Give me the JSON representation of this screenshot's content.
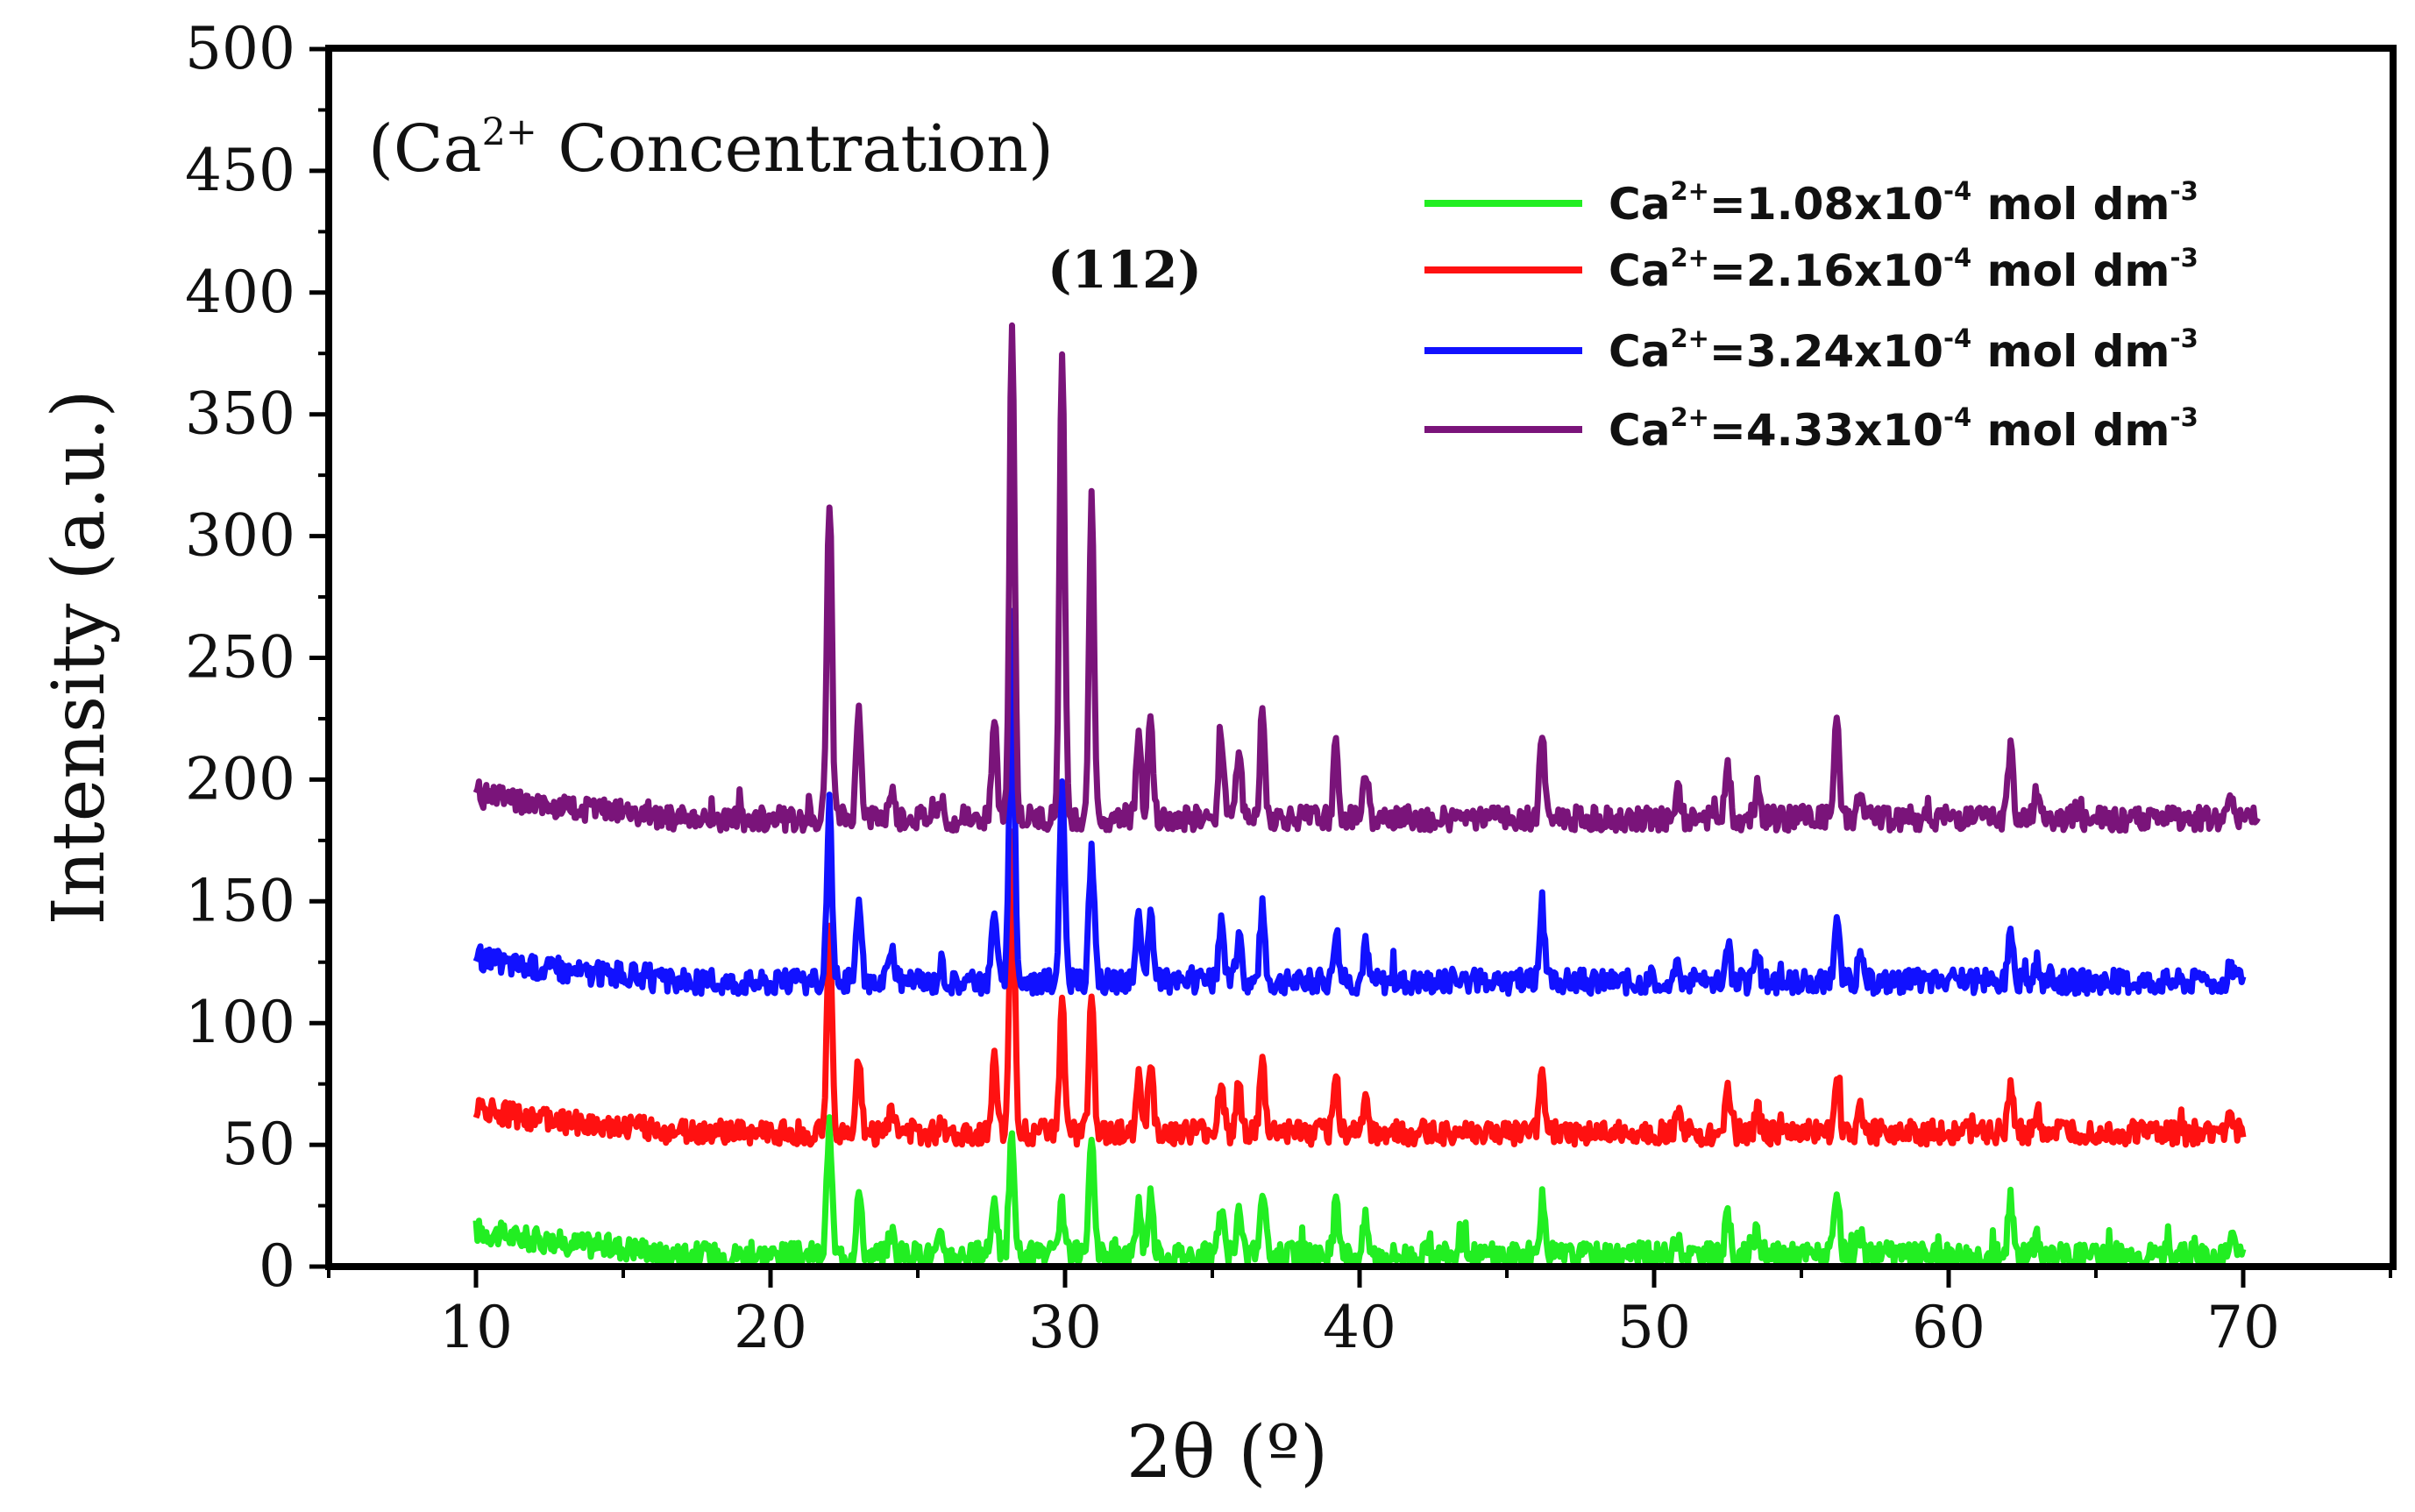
{
  "chart_data": {
    "type": "line",
    "title": "",
    "annotation": {
      "prefix": "(Ca",
      "sup": "2+",
      "suffix": " Concentration)"
    },
    "peak_label": "(112)",
    "xlabel": "2θ (º)",
    "ylabel": "Intensity (a.u.)",
    "xlim": [
      5,
      75
    ],
    "ylim": [
      0,
      500
    ],
    "xticks": [
      10,
      20,
      30,
      40,
      50,
      60,
      70
    ],
    "yticks": [
      0,
      50,
      100,
      150,
      200,
      250,
      300,
      350,
      400,
      450,
      500
    ],
    "legend_position": "top-right",
    "peaks": [
      {
        "pos": 22.0,
        "h": [
          52,
          82,
          72,
          132
        ]
      },
      {
        "pos": 23.0,
        "h": [
          26,
          30,
          32,
          45
        ]
      },
      {
        "pos": 24.1,
        "h": [
          10,
          11,
          12,
          12
        ]
      },
      {
        "pos": 25.8,
        "h": [
          7,
          7,
          8,
          9
        ]
      },
      {
        "pos": 27.6,
        "h": [
          26,
          30,
          32,
          40
        ]
      },
      {
        "pos": 28.2,
        "h": [
          50,
          125,
          150,
          205
        ]
      },
      {
        "pos": 29.9,
        "h": [
          20,
          53,
          80,
          195
        ]
      },
      {
        "pos": 30.9,
        "h": [
          45,
          53,
          55,
          130
        ]
      },
      {
        "pos": 32.5,
        "h": [
          22,
          24,
          25,
          38
        ]
      },
      {
        "pos": 32.9,
        "h": [
          25,
          28,
          30,
          42
        ]
      },
      {
        "pos": 35.3,
        "h": [
          20,
          22,
          25,
          35
        ]
      },
      {
        "pos": 35.9,
        "h": [
          18,
          20,
          20,
          30
        ]
      },
      {
        "pos": 36.7,
        "h": [
          28,
          28,
          30,
          42
        ]
      },
      {
        "pos": 39.2,
        "h": [
          20,
          22,
          22,
          30
        ]
      },
      {
        "pos": 40.2,
        "h": [
          14,
          15,
          15,
          20
        ]
      },
      {
        "pos": 46.2,
        "h": [
          22,
          24,
          25,
          35
        ]
      },
      {
        "pos": 50.8,
        "h": [
          7,
          8,
          8,
          10
        ]
      },
      {
        "pos": 52.5,
        "h": [
          15,
          16,
          16,
          20
        ]
      },
      {
        "pos": 53.5,
        "h": [
          9,
          10,
          10,
          12
        ]
      },
      {
        "pos": 56.2,
        "h": [
          25,
          25,
          27,
          38
        ]
      },
      {
        "pos": 57.0,
        "h": [
          8,
          9,
          9,
          10
        ]
      },
      {
        "pos": 62.1,
        "h": [
          22,
          20,
          24,
          30
        ]
      },
      {
        "pos": 63.0,
        "h": [
          8,
          8,
          8,
          10
        ]
      },
      {
        "pos": 69.6,
        "h": [
          7,
          7,
          8,
          10
        ]
      }
    ],
    "series": [
      {
        "name": "Ca2+=1.08x10-4 mol dm-3",
        "legend": {
          "prefix": "Ca",
          "sup1": "2+",
          "mid": "=1.08x10",
          "sup2": "-4",
          "unit": " mol dm",
          "sup3": "-3"
        },
        "color": "#22ee22",
        "baseline": 5,
        "x_start": 10,
        "x_end": 70
      },
      {
        "name": "Ca2+=2.16x10-4 mol dm-3",
        "legend": {
          "prefix": "Ca",
          "sup1": "2+",
          "mid": "=2.16x10",
          "sup2": "-4",
          "unit": " mol dm",
          "sup3": "-3"
        },
        "color": "#ff1111",
        "baseline": 55,
        "x_start": 10,
        "x_end": 70
      },
      {
        "name": "Ca2+=3.24x10-4 mol dm-3",
        "legend": {
          "prefix": "Ca",
          "sup1": "2+",
          "mid": "=3.24x10",
          "sup2": "-4",
          "unit": " mol dm",
          "sup3": "-3"
        },
        "color": "#1111ff",
        "baseline": 117,
        "x_start": 10,
        "x_end": 70
      },
      {
        "name": "Ca2+=4.33x10-4 mol dm-3",
        "legend": {
          "prefix": "Ca",
          "sup1": "2+",
          "mid": "=4.33x10",
          "sup2": "-4",
          "unit": " mol dm",
          "sup3": "-3"
        },
        "color": "#7a147a",
        "baseline": 184,
        "x_start": 10,
        "x_end": 70.5
      }
    ]
  }
}
